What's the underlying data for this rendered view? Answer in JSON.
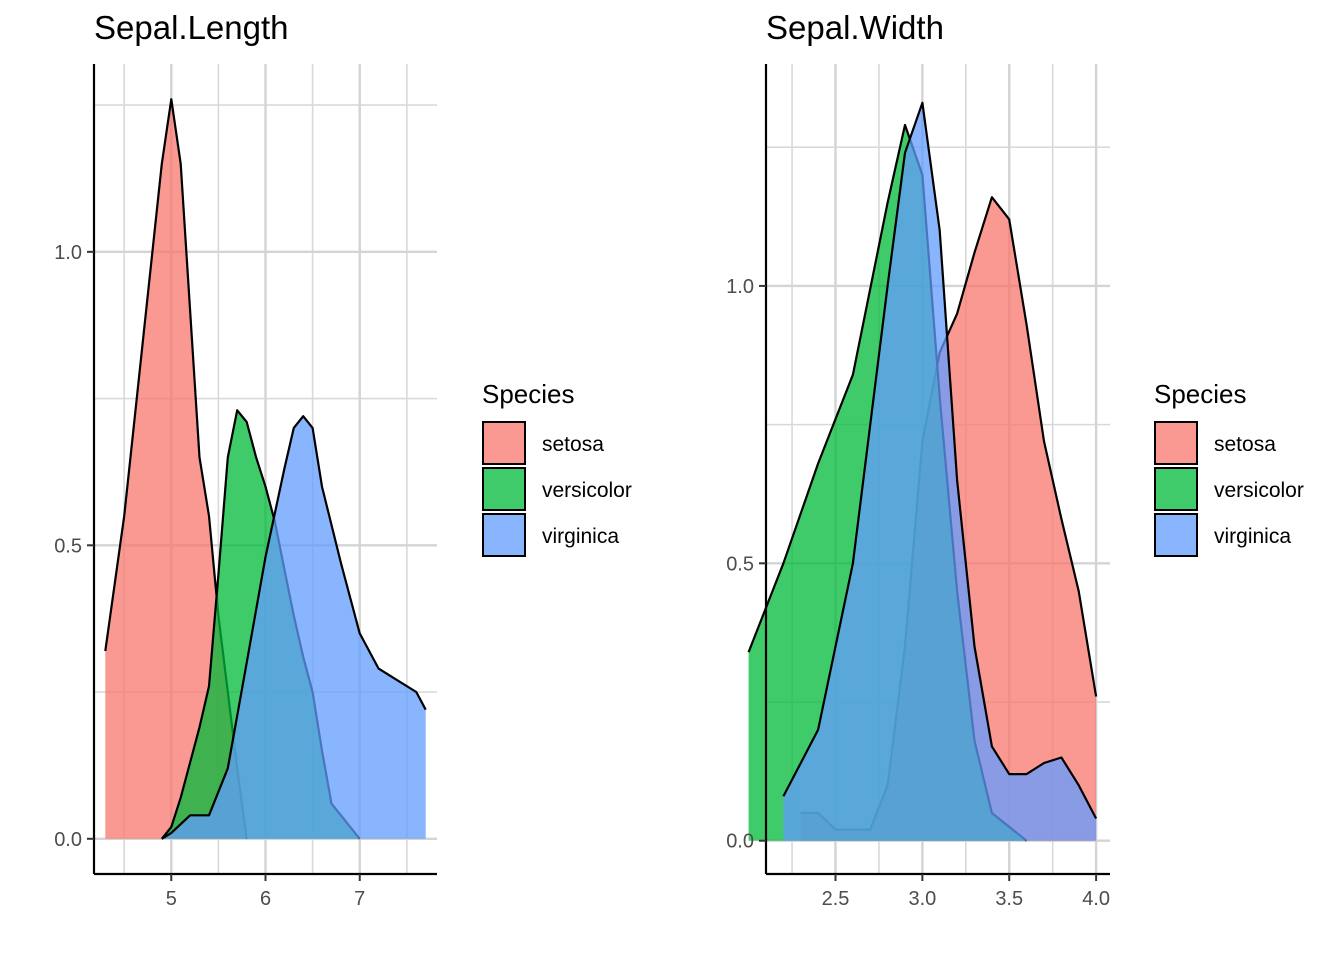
{
  "chart_data": [
    {
      "type": "area",
      "title": "Sepal.Length",
      "xlabel": "",
      "ylabel": "",
      "xlim": [
        4.18,
        7.82
      ],
      "ylim": [
        -0.06,
        1.32
      ],
      "x_ticks": [
        5,
        6,
        7
      ],
      "x_tick_labels": [
        "5",
        "6",
        "7"
      ],
      "y_ticks": [
        0.0,
        0.5,
        1.0
      ],
      "y_tick_labels": [
        "0.0",
        "0.5",
        "1.0"
      ],
      "grid": true,
      "legend": {
        "title": "Species",
        "placement": "right"
      },
      "series": [
        {
          "name": "setosa",
          "color": "#F8766D",
          "points": [
            [
              4.3,
              0.32
            ],
            [
              4.5,
              0.55
            ],
            [
              4.7,
              0.85
            ],
            [
              4.9,
              1.15
            ],
            [
              5.0,
              1.26
            ],
            [
              5.1,
              1.15
            ],
            [
              5.2,
              0.9
            ],
            [
              5.3,
              0.65
            ],
            [
              5.4,
              0.55
            ],
            [
              5.5,
              0.38
            ],
            [
              5.6,
              0.25
            ],
            [
              5.7,
              0.12
            ],
            [
              5.8,
              0.0
            ]
          ]
        },
        {
          "name": "versicolor",
          "color": "#00BA38",
          "points": [
            [
              4.9,
              0.0
            ],
            [
              5.0,
              0.02
            ],
            [
              5.1,
              0.07
            ],
            [
              5.2,
              0.13
            ],
            [
              5.3,
              0.19
            ],
            [
              5.4,
              0.26
            ],
            [
              5.5,
              0.45
            ],
            [
              5.6,
              0.65
            ],
            [
              5.7,
              0.73
            ],
            [
              5.8,
              0.71
            ],
            [
              5.9,
              0.65
            ],
            [
              6.0,
              0.6
            ],
            [
              6.1,
              0.54
            ],
            [
              6.2,
              0.46
            ],
            [
              6.3,
              0.38
            ],
            [
              6.4,
              0.31
            ],
            [
              6.5,
              0.25
            ],
            [
              6.6,
              0.15
            ],
            [
              6.7,
              0.06
            ],
            [
              7.0,
              0.0
            ]
          ]
        },
        {
          "name": "virginica",
          "color": "#619CFF",
          "points": [
            [
              4.9,
              0.0
            ],
            [
              5.0,
              0.01
            ],
            [
              5.2,
              0.04
            ],
            [
              5.4,
              0.04
            ],
            [
              5.6,
              0.12
            ],
            [
              5.8,
              0.3
            ],
            [
              6.0,
              0.48
            ],
            [
              6.2,
              0.63
            ],
            [
              6.3,
              0.7
            ],
            [
              6.4,
              0.72
            ],
            [
              6.5,
              0.7
            ],
            [
              6.6,
              0.6
            ],
            [
              6.8,
              0.47
            ],
            [
              7.0,
              0.35
            ],
            [
              7.2,
              0.29
            ],
            [
              7.4,
              0.27
            ],
            [
              7.6,
              0.25
            ],
            [
              7.7,
              0.22
            ]
          ]
        }
      ]
    },
    {
      "type": "area",
      "title": "Sepal.Width",
      "xlabel": "",
      "ylabel": "",
      "xlim": [
        2.1,
        4.08
      ],
      "ylim": [
        -0.06,
        1.4
      ],
      "x_ticks": [
        2.5,
        3.0,
        3.5,
        4.0
      ],
      "x_tick_labels": [
        "2.5",
        "3.0",
        "3.5",
        "4.0"
      ],
      "y_ticks": [
        0.0,
        0.5,
        1.0
      ],
      "y_tick_labels": [
        "0.0",
        "0.5",
        "1.0"
      ],
      "grid": true,
      "legend": {
        "title": "Species",
        "placement": "right"
      },
      "series": [
        {
          "name": "setosa",
          "color": "#F8766D",
          "points": [
            [
              2.3,
              0.05
            ],
            [
              2.4,
              0.05
            ],
            [
              2.5,
              0.02
            ],
            [
              2.7,
              0.02
            ],
            [
              2.8,
              0.1
            ],
            [
              2.9,
              0.35
            ],
            [
              3.0,
              0.72
            ],
            [
              3.1,
              0.88
            ],
            [
              3.2,
              0.95
            ],
            [
              3.3,
              1.06
            ],
            [
              3.4,
              1.16
            ],
            [
              3.5,
              1.12
            ],
            [
              3.6,
              0.93
            ],
            [
              3.7,
              0.72
            ],
            [
              3.8,
              0.58
            ],
            [
              3.9,
              0.45
            ],
            [
              4.0,
              0.26
            ]
          ]
        },
        {
          "name": "versicolor",
          "color": "#00BA38",
          "points": [
            [
              2.0,
              0.34
            ],
            [
              2.2,
              0.5
            ],
            [
              2.4,
              0.68
            ],
            [
              2.6,
              0.84
            ],
            [
              2.8,
              1.15
            ],
            [
              2.9,
              1.29
            ],
            [
              3.0,
              1.2
            ],
            [
              3.1,
              0.8
            ],
            [
              3.2,
              0.45
            ],
            [
              3.3,
              0.18
            ],
            [
              3.4,
              0.05
            ],
            [
              3.6,
              0.0
            ]
          ]
        },
        {
          "name": "virginica",
          "color": "#619CFF",
          "points": [
            [
              2.2,
              0.08
            ],
            [
              2.4,
              0.2
            ],
            [
              2.6,
              0.5
            ],
            [
              2.8,
              1.0
            ],
            [
              2.9,
              1.24
            ],
            [
              3.0,
              1.33
            ],
            [
              3.1,
              1.1
            ],
            [
              3.2,
              0.65
            ],
            [
              3.3,
              0.35
            ],
            [
              3.4,
              0.17
            ],
            [
              3.5,
              0.12
            ],
            [
              3.6,
              0.12
            ],
            [
              3.7,
              0.14
            ],
            [
              3.8,
              0.15
            ],
            [
              3.9,
              0.1
            ],
            [
              4.0,
              0.04
            ]
          ]
        }
      ]
    }
  ]
}
